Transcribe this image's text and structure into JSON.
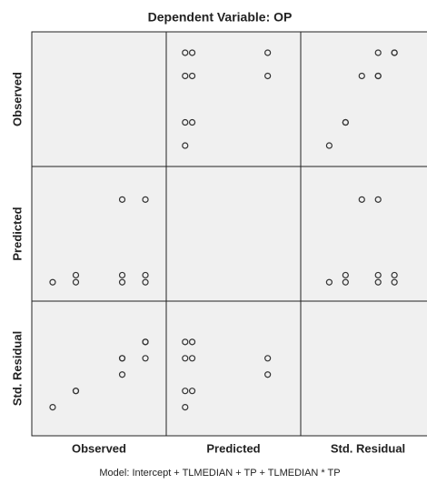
{
  "chart_data": {
    "type": "scatter_matrix",
    "title": "Dependent Variable: OP",
    "note": "Model: Intercept + TLMEDIAN + TP + TLMEDIAN * TP",
    "variables": [
      {
        "name": "Observed",
        "values": [
          5,
          4,
          2,
          1,
          5,
          4,
          2,
          5,
          4
        ],
        "lim": [
          0.1,
          5.9
        ]
      },
      {
        "name": "Predicted",
        "values": [
          1.7,
          1.7,
          1.7,
          1.7,
          2.0,
          2.0,
          2.0,
          5.2,
          5.2
        ],
        "lim": [
          0.9,
          6.6
        ]
      },
      {
        "name": "Std. Residual",
        "values": [
          1.6,
          0.8,
          -0.8,
          -1.6,
          1.6,
          0.8,
          -0.8,
          0.8,
          0
        ],
        "lim": [
          -3,
          3.6
        ]
      }
    ]
  }
}
